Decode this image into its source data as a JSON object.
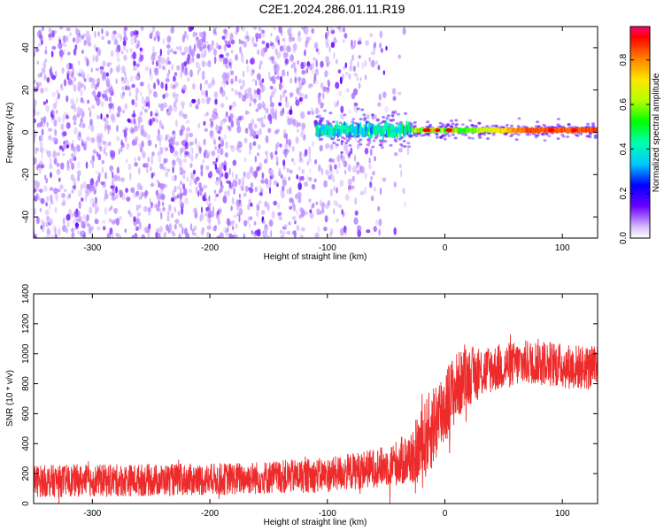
{
  "title": "C2E1.2024.286.01.11.R19",
  "colors": {
    "snr_line": "#ee2b2b",
    "specgram_low": "#7a1ff0",
    "specgram_mid": "#00e0c0",
    "specgram_high": "#ff2020",
    "axis": "#000000"
  },
  "chart_data": [
    {
      "type": "heatmap",
      "name": "spectrogram",
      "title": "C2E1.2024.286.01.11.R19",
      "xlabel": "Height of straight line (km)",
      "ylabel": "Frequency (Hz)",
      "xlim": [
        -350,
        130
      ],
      "ylim": [
        -50,
        50
      ],
      "xticks": [
        -300,
        -200,
        -100,
        0,
        100
      ],
      "xtick_labels": [
        "-300",
        "-200",
        "-100",
        "0",
        "100"
      ],
      "yticks": [
        -40,
        -20,
        0,
        20,
        40
      ],
      "ytick_labels": [
        "-40",
        "-20",
        "0",
        "20",
        "40"
      ],
      "colorbar": {
        "label": "Normalized spectral amplitude",
        "range": [
          0.0,
          0.95
        ],
        "ticks": [
          0.0,
          0.2,
          0.4,
          0.6,
          0.8
        ],
        "tick_labels": [
          "0.0",
          "0.2",
          "0.4",
          "0.6",
          "0.8"
        ],
        "colormap": "rainbow"
      },
      "features": {
        "noise_region_x": [
          -350,
          -40
        ],
        "signal_onset_x": -110,
        "signal_center_freq_hz": 1,
        "peak_amplitude": 0.95
      }
    },
    {
      "type": "line",
      "name": "snr",
      "xlabel": "Height of straight line (km)",
      "ylabel": "SNR (10 * v/v)",
      "xlim": [
        -350,
        130
      ],
      "ylim": [
        0,
        1400
      ],
      "xticks": [
        -300,
        -200,
        -100,
        0,
        100
      ],
      "xtick_labels": [
        "-300",
        "-200",
        "-100",
        "0",
        "100"
      ],
      "yticks": [
        0,
        200,
        400,
        600,
        800,
        1000,
        1200,
        1400
      ],
      "ytick_labels": [
        "0",
        "200",
        "400",
        "600",
        "800",
        "1000",
        "1200",
        "1400"
      ],
      "envelope": {
        "x": [
          -350,
          -200,
          -100,
          -50,
          -30,
          -20,
          -10,
          0,
          10,
          20,
          40,
          60,
          80,
          100,
          130
        ],
        "mean": [
          150,
          160,
          190,
          250,
          300,
          380,
          520,
          650,
          780,
          850,
          900,
          930,
          950,
          920,
          900
        ],
        "spread": [
          120,
          120,
          130,
          150,
          200,
          280,
          320,
          300,
          260,
          220,
          180,
          170,
          170,
          170,
          170
        ]
      }
    }
  ]
}
